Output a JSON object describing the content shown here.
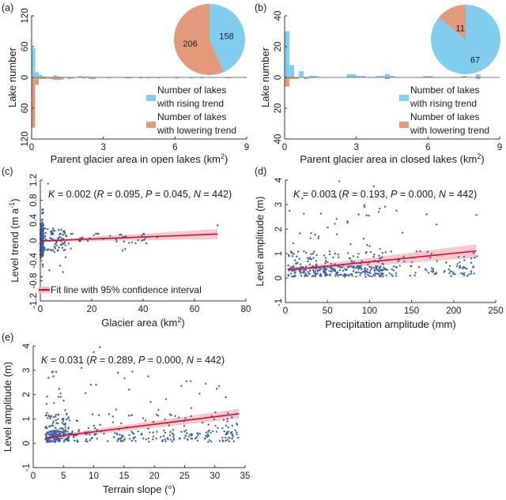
{
  "colors": {
    "rising": "#80cdef",
    "lowering": "#e39a7a",
    "scatter": "#3a62a8",
    "fit": "#c8102e",
    "ci": "#f5b5bb"
  },
  "chart_data": [
    {
      "id": "a",
      "panel_label": "(a)",
      "type": "bar",
      "subtype": "mirrored-histogram",
      "xlabel": "Parent glacier area in open lakes (km²)",
      "ylabel": "Lake number",
      "xlim": [
        0,
        9
      ],
      "ylim": [
        -120,
        120
      ],
      "xticks": [
        "0",
        "3",
        "6",
        "9"
      ],
      "yticks": [
        "120",
        "60",
        "0",
        "60",
        "120"
      ],
      "bin_width": 0.15,
      "series": [
        {
          "name": "Number of lakes with rising trend",
          "bins": [
            [
              0.0,
              57
            ],
            [
              0.15,
              10
            ],
            [
              0.3,
              5
            ],
            [
              0.45,
              2
            ],
            [
              0.6,
              1
            ],
            [
              0.9,
              4
            ],
            [
              1.05,
              2
            ],
            [
              1.35,
              1
            ],
            [
              1.5,
              1
            ],
            [
              1.8,
              1
            ],
            [
              1.95,
              3
            ],
            [
              2.25,
              2
            ],
            [
              2.4,
              1
            ],
            [
              3.0,
              1
            ],
            [
              3.3,
              1
            ],
            [
              3.75,
              1
            ],
            [
              3.9,
              1
            ],
            [
              4.05,
              1
            ],
            [
              4.5,
              1
            ],
            [
              4.95,
              1
            ],
            [
              5.1,
              1
            ],
            [
              5.55,
              1
            ],
            [
              6.0,
              1
            ],
            [
              6.75,
              1
            ],
            [
              7.35,
              1
            ],
            [
              8.1,
              1
            ],
            [
              8.85,
              1
            ]
          ]
        },
        {
          "name": "Number of lakes with lowering trend",
          "bins": [
            [
              0.0,
              98
            ],
            [
              0.15,
              14
            ],
            [
              0.3,
              3
            ],
            [
              0.45,
              3
            ],
            [
              0.6,
              2
            ],
            [
              0.75,
              3
            ],
            [
              0.9,
              5
            ],
            [
              1.05,
              5
            ],
            [
              1.2,
              4
            ],
            [
              1.5,
              3
            ],
            [
              1.65,
              2
            ],
            [
              2.1,
              2
            ],
            [
              2.4,
              3
            ],
            [
              2.55,
              3
            ],
            [
              3.15,
              1
            ],
            [
              3.9,
              1
            ],
            [
              4.05,
              1
            ],
            [
              4.5,
              1
            ],
            [
              4.8,
              1
            ],
            [
              5.25,
              1
            ],
            [
              6.0,
              1
            ],
            [
              6.6,
              2
            ],
            [
              7.05,
              1
            ],
            [
              8.1,
              1
            ],
            [
              8.25,
              1
            ]
          ]
        }
      ],
      "pie": {
        "slices": [
          {
            "label": "158",
            "value": 158,
            "series": "rising"
          },
          {
            "label": "206",
            "value": 206,
            "series": "lowering"
          }
        ]
      },
      "legend": [
        "Number of lakes",
        "with rising trend",
        "Number of lakes",
        "with lowering trend"
      ],
      "legend_position": "bottom-right"
    },
    {
      "id": "b",
      "panel_label": "(b)",
      "type": "bar",
      "subtype": "mirrored-histogram",
      "xlabel": "Parent glacier area in closed lakes (km²)",
      "ylabel": "Lake number",
      "xlim": [
        0,
        9
      ],
      "ylim": [
        -40,
        40
      ],
      "xticks": [
        "0",
        "3",
        "6",
        "9"
      ],
      "yticks": [
        "40",
        "20",
        "0",
        "20",
        "40"
      ],
      "bin_width": 0.2,
      "series": [
        {
          "name": "Number of lakes with rising trend",
          "bins": [
            [
              0.0,
              30
            ],
            [
              0.2,
              8
            ],
            [
              0.6,
              4
            ],
            [
              1.0,
              1
            ],
            [
              1.2,
              1
            ],
            [
              2.6,
              2
            ],
            [
              2.8,
              2
            ],
            [
              3.0,
              1
            ],
            [
              3.2,
              1
            ],
            [
              3.8,
              1
            ],
            [
              4.0,
              1
            ],
            [
              4.2,
              2
            ],
            [
              4.4,
              1
            ],
            [
              5.8,
              1
            ],
            [
              6.0,
              1
            ],
            [
              7.4,
              1
            ],
            [
              8.0,
              2
            ]
          ]
        },
        {
          "name": "Number of lakes with lowering trend",
          "bins": [
            [
              0.0,
              6
            ],
            [
              0.2,
              1
            ],
            [
              0.4,
              1
            ],
            [
              0.8,
              1
            ],
            [
              4.2,
              1
            ],
            [
              8.0,
              1
            ]
          ]
        }
      ],
      "pie": {
        "slices": [
          {
            "label": "67",
            "value": 67,
            "series": "rising"
          },
          {
            "label": "11",
            "value": 11,
            "series": "lowering"
          }
        ]
      },
      "legend": [
        "Number of lakes",
        "with rising trend",
        "Number of lakes",
        "with lowering trend"
      ],
      "legend_position": "bottom-right"
    },
    {
      "id": "c",
      "panel_label": "(c)",
      "type": "scatter",
      "xlabel": "Glacier area (km²)",
      "ylabel": "Level trend (m a⁻¹)",
      "xlim": [
        0,
        80
      ],
      "ylim": [
        -1.2,
        1.2
      ],
      "xticks": [
        "0",
        "20",
        "40",
        "60",
        "80"
      ],
      "yticks": [
        "-1.2",
        "-0.8",
        "-0.4",
        "0",
        "0.4",
        "0.8",
        "1.2"
      ],
      "annotation": {
        "K": "0.002",
        "R": "0.095",
        "P": "0.045",
        "N": "442"
      },
      "fit": {
        "slope": 0.002,
        "intercept": -0.01,
        "x_range": [
          0,
          69
        ],
        "ci_halfwidth_start": 0.02,
        "ci_halfwidth_end": 0.1
      },
      "legend": "Fit line with 95% confidence interval",
      "legend_position": "bottom-left",
      "n_points": 442,
      "point_model": {
        "x_dist": "mostly near 0, sparse to 69",
        "y_spread": "±0.6 near origin, narrow beyond 10"
      }
    },
    {
      "id": "d",
      "panel_label": "(d)",
      "type": "scatter",
      "xlabel": "Precipitation amplitude (mm)",
      "ylabel": "Level amplitude (m)",
      "xlim": [
        0,
        250
      ],
      "ylim": [
        -1,
        4
      ],
      "xticks": [
        "0",
        "50",
        "100",
        "150",
        "200",
        "250"
      ],
      "yticks": [
        "-1",
        "0",
        "1",
        "2",
        "3",
        "4"
      ],
      "annotation": {
        "K": "0.003",
        "R": "0.193",
        "P": "0.000",
        "N": "442"
      },
      "fit": {
        "slope": 0.0035,
        "intercept": 0.31,
        "x_range": [
          3,
          227
        ],
        "ci_halfwidth_start": 0.08,
        "ci_halfwidth_end": 0.27
      },
      "n_points": 442,
      "point_model": {
        "x_range": [
          3,
          227
        ],
        "y_base": "0.05–0.6 dense, sparse up to 4"
      }
    },
    {
      "id": "e",
      "panel_label": "(e)",
      "type": "scatter",
      "xlabel": "Terrain slope (°)",
      "ylabel": "Level amplitude (m)",
      "xlim": [
        0,
        35
      ],
      "ylim": [
        -1,
        4
      ],
      "xticks": [
        "0",
        "5",
        "10",
        "15",
        "20",
        "25",
        "30",
        "35"
      ],
      "yticks": [
        "-1",
        "0",
        "1",
        "2",
        "3",
        "4"
      ],
      "annotation": {
        "K": "0.031",
        "R": "0.289",
        "P": "0.000",
        "N": "442"
      },
      "fit": {
        "slope": 0.031,
        "intercept": 0.16,
        "x_range": [
          2,
          34
        ],
        "ci_halfwidth_start": 0.07,
        "ci_halfwidth_end": 0.2
      },
      "n_points": 442,
      "point_model": {
        "x_range": [
          2,
          34
        ],
        "y_base": "0.05–0.6 dense, sparse up to 4"
      }
    }
  ]
}
